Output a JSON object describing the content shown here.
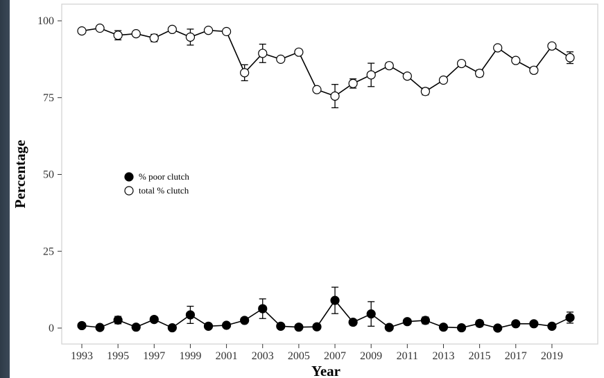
{
  "chart_data": {
    "type": "line",
    "title": "",
    "xlabel": "Year",
    "ylabel": "Percentage",
    "ylim": [
      0,
      100
    ],
    "yticks": [
      0,
      25,
      50,
      75,
      100
    ],
    "xticks": [
      1993,
      1995,
      1997,
      1999,
      2001,
      2003,
      2005,
      2007,
      2009,
      2011,
      2013,
      2015,
      2017,
      2019
    ],
    "grid": false,
    "legend_position": "center-left",
    "x": [
      1993,
      1994,
      1995,
      1996,
      1997,
      1998,
      1999,
      2000,
      2001,
      2002,
      2003,
      2004,
      2005,
      2006,
      2007,
      2008,
      2009,
      2010,
      2011,
      2012,
      2013,
      2014,
      2015,
      2016,
      2017,
      2018,
      2019,
      2020
    ],
    "series": [
      {
        "name": "% poor clutch",
        "marker": "filled-circle",
        "color": "#000000",
        "values": [
          0.8,
          0.2,
          2.6,
          0.3,
          2.8,
          0.1,
          4.3,
          0.6,
          0.9,
          2.5,
          6.3,
          0.6,
          0.3,
          0.4,
          9.0,
          1.9,
          4.6,
          0.2,
          2.1,
          2.5,
          0.3,
          0.1,
          1.5,
          0.0,
          1.4,
          1.4,
          0.6,
          3.4
        ],
        "error": [
          0.3,
          0.2,
          1.2,
          0.3,
          0.9,
          0.2,
          2.8,
          0.3,
          0.3,
          0.4,
          3.2,
          0.3,
          0.2,
          0.2,
          4.3,
          0.9,
          4.0,
          0.2,
          0.8,
          1.1,
          0.2,
          0.1,
          1.0,
          0.1,
          0.6,
          0.6,
          0.3,
          1.8
        ]
      },
      {
        "name": "total % clutch",
        "marker": "open-circle",
        "color": "#000000",
        "values": [
          96.7,
          97.6,
          95.3,
          95.8,
          94.4,
          97.2,
          94.7,
          96.9,
          96.5,
          83.1,
          89.4,
          87.5,
          89.8,
          77.6,
          75.5,
          79.6,
          82.4,
          85.4,
          82.0,
          77.0,
          80.7,
          86.1,
          82.9,
          91.2,
          87.1,
          83.9,
          91.8,
          88.0
        ],
        "error": [
          0.4,
          0.4,
          1.5,
          0.5,
          1.2,
          0.5,
          2.6,
          0.7,
          0.7,
          2.6,
          3.0,
          0.4,
          0.5,
          0.4,
          3.8,
          1.5,
          3.8,
          1.0,
          0.9,
          1.1,
          0.9,
          0.7,
          1.1,
          0.7,
          0.7,
          1.0,
          0.5,
          1.9
        ]
      }
    ]
  }
}
